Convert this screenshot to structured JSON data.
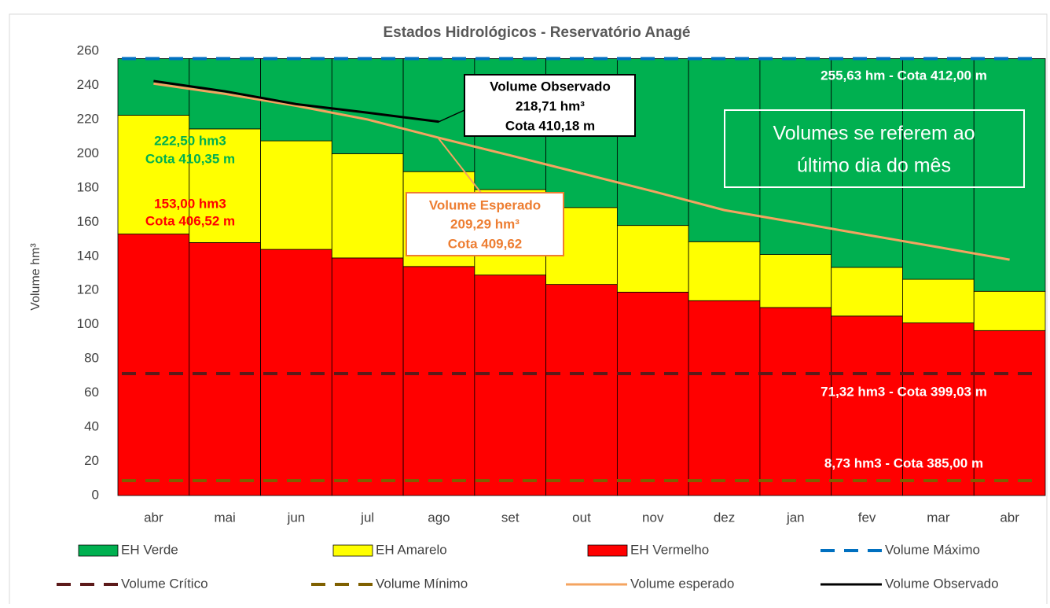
{
  "chart_data": {
    "type": "bar",
    "stacked": true,
    "title": "Estados Hidrológicos - Reservatório Anagé",
    "ylabel": "Volume hm³",
    "categories": [
      "abr",
      "mai",
      "jun",
      "jul",
      "ago",
      "set",
      "out",
      "nov",
      "dez",
      "jan",
      "fev",
      "mar",
      "abr"
    ],
    "ylim": [
      0,
      260
    ],
    "yticks": [
      0,
      20,
      40,
      60,
      80,
      100,
      120,
      140,
      160,
      180,
      200,
      220,
      240,
      260
    ],
    "series": [
      {
        "name": "EH Verde",
        "type": "bar",
        "color": "#00b050",
        "values": [
          33.13,
          41.13,
          48.13,
          55.63,
          66.13,
          76.63,
          87.13,
          97.63,
          107.13,
          114.63,
          122.13,
          129.13,
          136.13
        ]
      },
      {
        "name": "EH Amarelo",
        "type": "bar",
        "color": "#ffff00",
        "values": [
          69.5,
          66.5,
          63.5,
          61,
          55.5,
          50,
          45,
          39,
          34.5,
          31,
          28.5,
          25.5,
          23
        ]
      },
      {
        "name": "EH Vermelho",
        "type": "bar",
        "color": "#ff0000",
        "values": [
          153,
          148,
          144,
          139,
          134,
          129,
          123.5,
          119,
          114,
          110,
          105,
          101,
          96.5
        ]
      },
      {
        "name": "Volume Máximo",
        "type": "hline",
        "color": "#0070c0",
        "value": 255.63
      },
      {
        "name": "Volume Crítico",
        "type": "hline",
        "color": "#5c1a1a",
        "value": 71.32
      },
      {
        "name": "Volume Mínimo",
        "type": "hline",
        "color": "#7f6000",
        "value": 8.73
      },
      {
        "name": "Volume esperado",
        "type": "line",
        "color": "#f4a460",
        "values": [
          241,
          235,
          228,
          220,
          209.29,
          199,
          188.5,
          178,
          167,
          159.8,
          152.5,
          145.3,
          138
        ]
      },
      {
        "name": "Volume Observado",
        "type": "line",
        "color": "#000000",
        "values": [
          242.5,
          236.5,
          229,
          224,
          218.71,
          null,
          null,
          null,
          null,
          null,
          null,
          null,
          null
        ]
      }
    ],
    "annotations": [
      {
        "text": [
          "255,63 hm - Cota 412,00 m"
        ],
        "color": "#ffffff"
      },
      {
        "text": [
          "71,32 hm3 - Cota 399,03 m"
        ],
        "color": "#ffffff"
      },
      {
        "text": [
          "8,73 hm3 - Cota 385,00 m"
        ],
        "color": "#ffffff"
      },
      {
        "text": [
          "222,50 hm3",
          "Cota 410,35 m"
        ],
        "color": "#00b050"
      },
      {
        "text": [
          "153,00 hm3",
          "Cota 406,52 m"
        ],
        "color": "#ff0000"
      },
      {
        "text": [
          "Volume Observado",
          "218,71 hm³",
          "Cota 410,18 m"
        ],
        "color": "#000000"
      },
      {
        "text": [
          "Volume Esperado",
          "209,29 hm³",
          "Cota 409,62"
        ],
        "color": "#ed7d31"
      },
      {
        "text": [
          "Volumes se referem ao",
          "último dia do mês"
        ],
        "color": "#ffffff"
      }
    ]
  }
}
